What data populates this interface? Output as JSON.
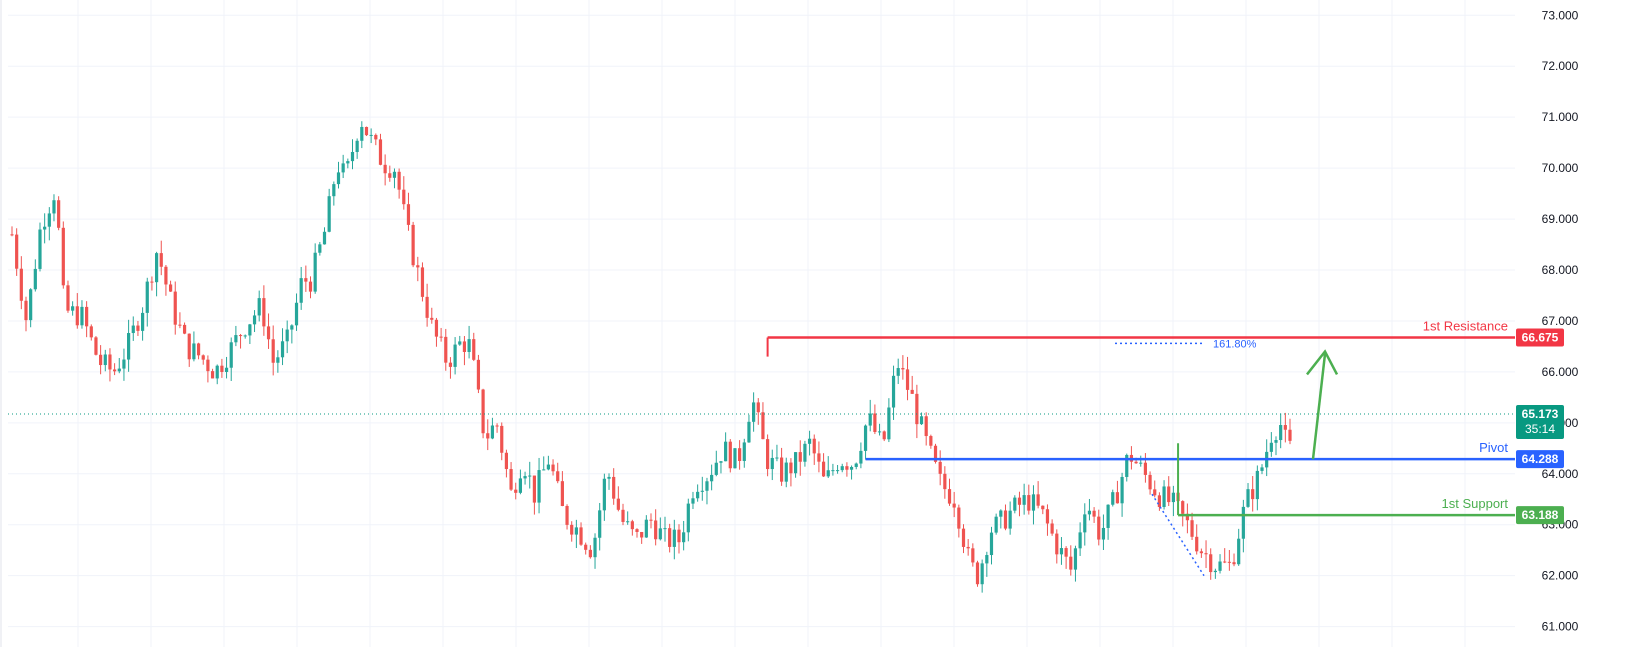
{
  "colors": {
    "up": "#26a69a",
    "down": "#ef5350",
    "grid": "#f0f3fa",
    "axis_text": "#131722",
    "resistance": "#f23645",
    "pivot": "#2962ff",
    "support": "#4caf50",
    "current": "#089981",
    "fib": "#2962ff",
    "arrow": "#4caf50"
  },
  "chart_data": {
    "type": "candlestick",
    "ylim": [
      60.6,
      73.3
    ],
    "y_ticks": [
      "61.000",
      "62.000",
      "63.000",
      "64.000",
      "65.000",
      "66.000",
      "67.000",
      "68.000",
      "69.000",
      "70.000",
      "71.000",
      "72.000",
      "73.000"
    ],
    "grid": true,
    "bar_count": 275,
    "anchors": [
      [
        0,
        68.7
      ],
      [
        5,
        67.0
      ],
      [
        10,
        68.9
      ],
      [
        15,
        69.6
      ],
      [
        18,
        67.2
      ],
      [
        24,
        67.1
      ],
      [
        30,
        66.2
      ],
      [
        35,
        66.0
      ],
      [
        40,
        66.5
      ],
      [
        45,
        67.3
      ],
      [
        50,
        68.4
      ],
      [
        55,
        67.3
      ],
      [
        60,
        66.5
      ],
      [
        65,
        66.3
      ],
      [
        70,
        66.0
      ],
      [
        76,
        66.5
      ],
      [
        80,
        66.9
      ],
      [
        86,
        67.3
      ],
      [
        90,
        66.2
      ],
      [
        95,
        66.6
      ],
      [
        100,
        67.8
      ],
      [
        103,
        67.8
      ],
      [
        108,
        68.8
      ],
      [
        112,
        70.1
      ],
      [
        115,
        69.8
      ],
      [
        120,
        71.0
      ],
      [
        124,
        70.5
      ],
      [
        128,
        70.1
      ],
      [
        132,
        70.0
      ],
      [
        136,
        68.8
      ],
      [
        140,
        67.9
      ],
      [
        145,
        66.8
      ],
      [
        150,
        66.2
      ],
      [
        155,
        66.6
      ],
      [
        158,
        66.5
      ],
      [
        160,
        65.7
      ],
      [
        163,
        64.7
      ],
      [
        167,
        65.0
      ],
      [
        172,
        63.6
      ],
      [
        176,
        64.3
      ],
      [
        180,
        63.6
      ],
      [
        185,
        64.3
      ],
      [
        190,
        63.2
      ],
      [
        195,
        62.9
      ],
      [
        200,
        62.5
      ],
      [
        205,
        64.1
      ],
      [
        210,
        63.1
      ],
      [
        215,
        62.7
      ],
      [
        220,
        63.1
      ],
      [
        225,
        62.7
      ],
      [
        230,
        62.7
      ],
      [
        235,
        63.8
      ],
      [
        240,
        64.0
      ],
      [
        245,
        64.5
      ],
      [
        250,
        64.2
      ],
      [
        255,
        65.5
      ],
      [
        260,
        64.3
      ],
      [
        265,
        64.0
      ],
      [
        270,
        64.2
      ],
      [
        275,
        64.6
      ],
      [
        280,
        63.8
      ],
      [
        285,
        64.3
      ],
      [
        290,
        64.2
      ],
      [
        295,
        65.1
      ],
      [
        300,
        64.5
      ],
      [
        305,
        66.2
      ],
      [
        310,
        65.5
      ],
      [
        315,
        64.6
      ],
      [
        320,
        63.8
      ],
      [
        325,
        63.5
      ],
      [
        330,
        62.2
      ],
      [
        333,
        62.0
      ],
      [
        337,
        62.9
      ],
      [
        340,
        63.0
      ],
      [
        345,
        63.3
      ],
      [
        350,
        63.5
      ],
      [
        355,
        63.2
      ],
      [
        360,
        62.6
      ],
      [
        365,
        62.1
      ],
      [
        370,
        63.5
      ],
      [
        375,
        62.8
      ],
      [
        380,
        63.5
      ],
      [
        385,
        64.4
      ],
      [
        390,
        64.0
      ],
      [
        395,
        63.6
      ],
      [
        400,
        63.4
      ],
      [
        405,
        63.0
      ],
      [
        410,
        62.5
      ],
      [
        415,
        62.2
      ],
      [
        420,
        62.2
      ],
      [
        425,
        63.4
      ],
      [
        430,
        64.0
      ],
      [
        434,
        64.8
      ],
      [
        437,
        65.0
      ],
      [
        440,
        64.4
      ],
      [
        442,
        64.9
      ]
    ],
    "index_scale": 0.6222,
    "current_price": "65.173",
    "countdown": "35:14",
    "levels": [
      {
        "value": 66.675,
        "label": "1st Resistance",
        "tag": "66.675",
        "color_key": "resistance",
        "from_bar": 162
      },
      {
        "value": 64.288,
        "label": "Pivot",
        "tag": "64.288",
        "color_key": "pivot",
        "from_bar": 183
      },
      {
        "value": 63.188,
        "label": "1st Support",
        "tag": "63.188",
        "color_key": "support",
        "from_bar": 250
      }
    ],
    "fib_label": "161.80%",
    "fib_value": 66.56
  }
}
